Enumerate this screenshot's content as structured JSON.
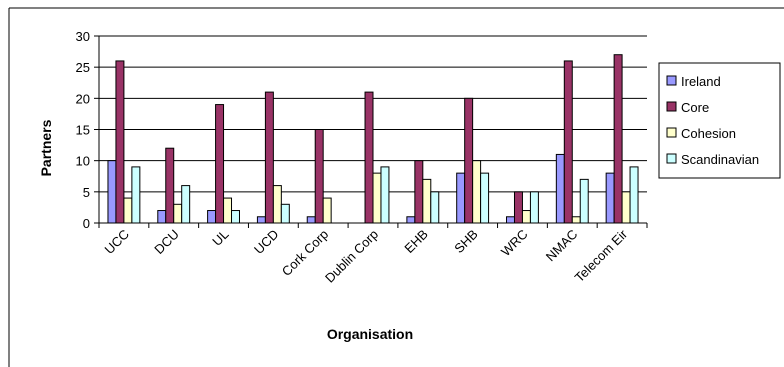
{
  "chart_data": {
    "type": "bar",
    "xlabel": "Organisation",
    "ylabel": "Partners",
    "ylim": [
      0,
      30
    ],
    "yticks": [
      0,
      5,
      10,
      15,
      20,
      25,
      30
    ],
    "grid": true,
    "legend_position": "right",
    "categories": [
      "UCC",
      "DCU",
      "UL",
      "UCD",
      "Cork Corp",
      "Dublin Corp",
      "EHB",
      "SHB",
      "WRC",
      "NMAC",
      "Telecom Eir"
    ],
    "series": [
      {
        "name": "Ireland",
        "color": "#9999ff",
        "values": [
          10,
          2,
          2,
          1,
          1,
          0,
          1,
          8,
          1,
          11,
          8
        ]
      },
      {
        "name": "Core",
        "color": "#993366",
        "values": [
          26,
          12,
          19,
          21,
          15,
          21,
          10,
          20,
          5,
          26,
          27
        ]
      },
      {
        "name": "Cohesion",
        "color": "#ffffcc",
        "values": [
          4,
          3,
          4,
          6,
          4,
          8,
          7,
          10,
          2,
          1,
          5
        ]
      },
      {
        "name": "Scandinavian",
        "color": "#ccffff",
        "values": [
          9,
          6,
          2,
          3,
          0,
          9,
          5,
          8,
          5,
          7,
          9
        ]
      }
    ]
  }
}
